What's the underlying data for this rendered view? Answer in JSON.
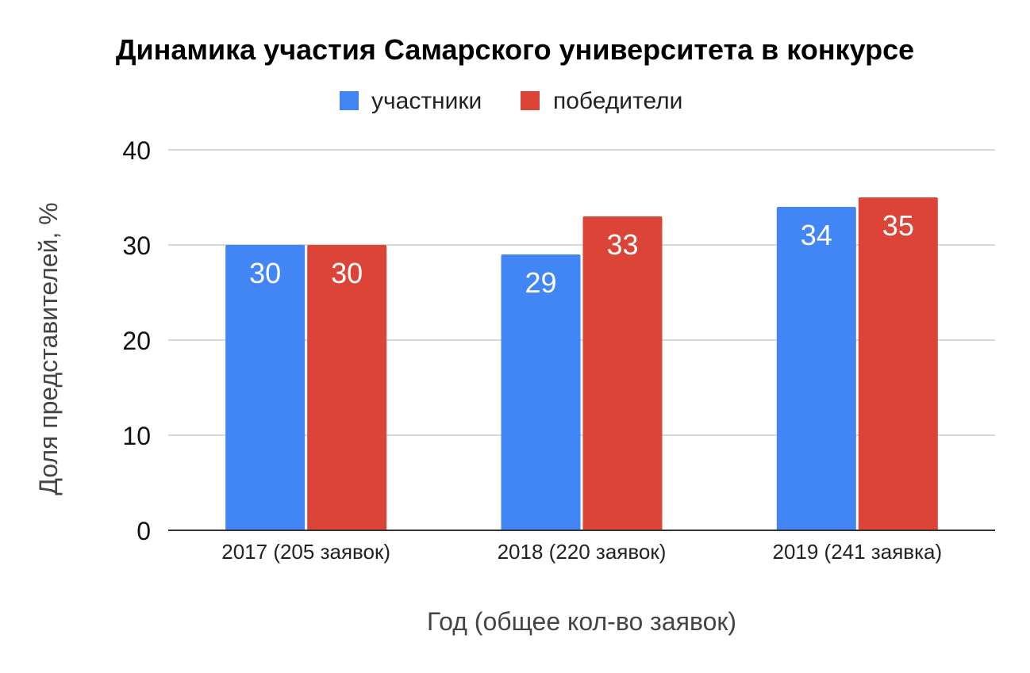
{
  "chart_data": {
    "type": "bar",
    "title": "Динамика участия Самарского университета в конкурсе",
    "xlabel": "Год (общее кол-во заявок)",
    "ylabel": "Доля представителей, %",
    "categories": [
      "2017 (205 заявок)",
      "2018 (220 заявок)",
      "2019 (241 заявка)"
    ],
    "series": [
      {
        "name": "участники",
        "values": [
          30,
          29,
          34
        ],
        "color": "#4285f4"
      },
      {
        "name": "победители",
        "values": [
          30,
          33,
          35
        ],
        "color": "#db4437"
      }
    ],
    "ylim": [
      0,
      40
    ],
    "yticks": [
      0,
      10,
      20,
      30,
      40
    ],
    "grid": true,
    "legend_position": "top-center",
    "data_labels": true
  }
}
